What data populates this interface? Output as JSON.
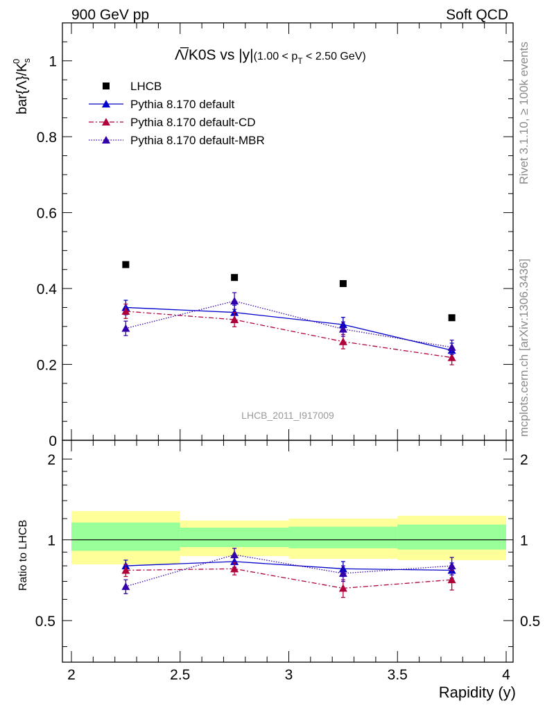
{
  "header": {
    "left": "900 GeV pp",
    "right": "Soft QCD"
  },
  "side_labels": {
    "rivet": "Rivet 3.1.10, ≥ 100k events",
    "mcplots": "mcplots.cern.ch [arXiv:1306.3436]"
  },
  "analysis_id": "LHCB_2011_I917009",
  "chart_data": [
    {
      "type": "scatter",
      "panel": "main",
      "title_main": "Λ̅/K0S vs |y|",
      "title_cut": "(1.00 < p",
      "title_cut_sub": "T",
      "title_cut_end": " < 2.50 GeV)",
      "ylabel": "bar{Λ}/K",
      "ylabel_sup": "0",
      "ylabel_sub": "s",
      "xlabel": "Rapidity (y)",
      "xlim": [
        2.0,
        4.0
      ],
      "ylim": [
        0.0,
        1.1
      ],
      "y_ticks": [
        0,
        0.2,
        0.4,
        0.6,
        0.8,
        1
      ],
      "y_tick_labels": [
        "0",
        "0.2",
        "0.4",
        "0.6",
        "0.8",
        "1"
      ],
      "x": [
        2.25,
        2.75,
        3.25,
        3.75
      ],
      "legend_position": "top-left",
      "series": [
        {
          "name": "LHCB",
          "style": "data",
          "color": "#000000",
          "values": [
            0.463,
            0.429,
            0.413,
            0.323
          ],
          "errors": [
            0.004,
            0.004,
            0.004,
            0.004
          ]
        },
        {
          "name": "Pythia 8.170 default",
          "style": "solid",
          "color": "#0000cc",
          "values": [
            0.35,
            0.337,
            0.305,
            0.237
          ],
          "errors": [
            0.019,
            0.019,
            0.019,
            0.019
          ]
        },
        {
          "name": "Pythia 8.170 default-CD",
          "style": "dashdot",
          "color": "#b0003a",
          "values": [
            0.34,
            0.318,
            0.26,
            0.218
          ],
          "errors": [
            0.019,
            0.019,
            0.019,
            0.019
          ]
        },
        {
          "name": "Pythia 8.170 default-MBR",
          "style": "dotted",
          "color": "#3300aa",
          "values": [
            0.295,
            0.367,
            0.293,
            0.245
          ],
          "errors": [
            0.019,
            0.022,
            0.019,
            0.019
          ]
        }
      ]
    },
    {
      "type": "scatter",
      "panel": "ratio",
      "ylabel": "Ratio to LHCB",
      "xlabel": "Rapidity (y)",
      "xlim": [
        2.0,
        4.0
      ],
      "ylim": [
        0.35,
        2.35
      ],
      "log_scale_y": true,
      "y_ticks": [
        0.5,
        1,
        2
      ],
      "y_tick_labels": [
        "0.5",
        "1",
        "2"
      ],
      "x_ticks": [
        2,
        2.5,
        3,
        3.5,
        4
      ],
      "x_tick_labels": [
        "2",
        "2.5",
        "3",
        "3.5",
        "4"
      ],
      "x": [
        2.25,
        2.75,
        3.25,
        3.75
      ],
      "reference_bands": {
        "bins": [
          [
            2.0,
            2.5
          ],
          [
            2.5,
            3.0
          ],
          [
            3.0,
            3.5
          ],
          [
            3.5,
            4.0
          ]
        ],
        "inner": [
          [
            0.91,
            1.16
          ],
          [
            0.94,
            1.11
          ],
          [
            0.93,
            1.12
          ],
          [
            0.92,
            1.14
          ]
        ],
        "outer": [
          [
            0.81,
            1.28
          ],
          [
            0.87,
            1.18
          ],
          [
            0.85,
            1.2
          ],
          [
            0.84,
            1.23
          ]
        ],
        "inner_color": "#99ff99",
        "outer_color": "#ffff99"
      },
      "series": [
        {
          "name": "Pythia 8.170 default",
          "style": "solid",
          "color": "#0000cc",
          "values": [
            0.8,
            0.83,
            0.78,
            0.77
          ],
          "errors": [
            0.04,
            0.04,
            0.05,
            0.05
          ]
        },
        {
          "name": "Pythia 8.170 default-CD",
          "style": "dashdot",
          "color": "#b0003a",
          "values": [
            0.77,
            0.78,
            0.66,
            0.71
          ],
          "errors": [
            0.04,
            0.04,
            0.05,
            0.06
          ]
        },
        {
          "name": "Pythia 8.170 default-MBR",
          "style": "dotted",
          "color": "#3300aa",
          "values": [
            0.67,
            0.88,
            0.75,
            0.8
          ],
          "errors": [
            0.04,
            0.05,
            0.05,
            0.06
          ]
        }
      ]
    }
  ]
}
